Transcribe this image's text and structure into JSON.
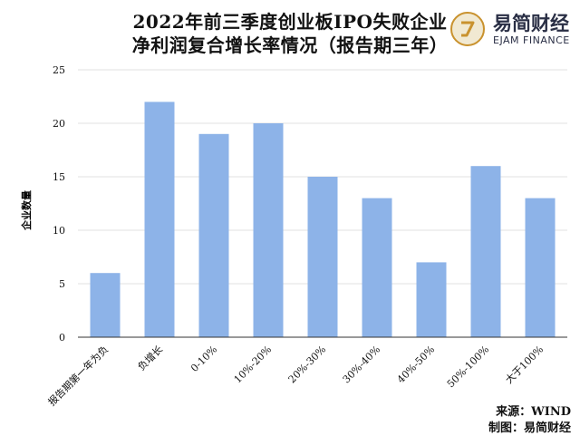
{
  "header": {
    "title_line1": "2022年前三季度创业板IPO失败企业",
    "title_line2": "净利润复合增长率情况（报告期三年）"
  },
  "logo": {
    "name": "易简财经",
    "subtitle": "EJAM FINANCE",
    "brand_color": "#c9922e"
  },
  "footer": {
    "source": "来源：WIND",
    "maker": "制图：易简财经"
  },
  "chart_data": {
    "type": "bar",
    "title": "2022年前三季度创业板IPO失败企业净利润复合增长率情况（报告期三年）",
    "xlabel": "",
    "ylabel": "企业数量",
    "categories": [
      "报告期第一年为负",
      "负增长",
      "0-10%",
      "10%-20%",
      "20%-30%",
      "30%-40%",
      "40%-50%",
      "50%-100%",
      "大于100%"
    ],
    "values": [
      6,
      22,
      19,
      20,
      15,
      13,
      7,
      16,
      13
    ],
    "ylim": [
      0,
      25
    ],
    "yticks": [
      0,
      5,
      10,
      15,
      20,
      25
    ],
    "grid": true,
    "legend": "none",
    "bar_color": "#8db3e8"
  }
}
